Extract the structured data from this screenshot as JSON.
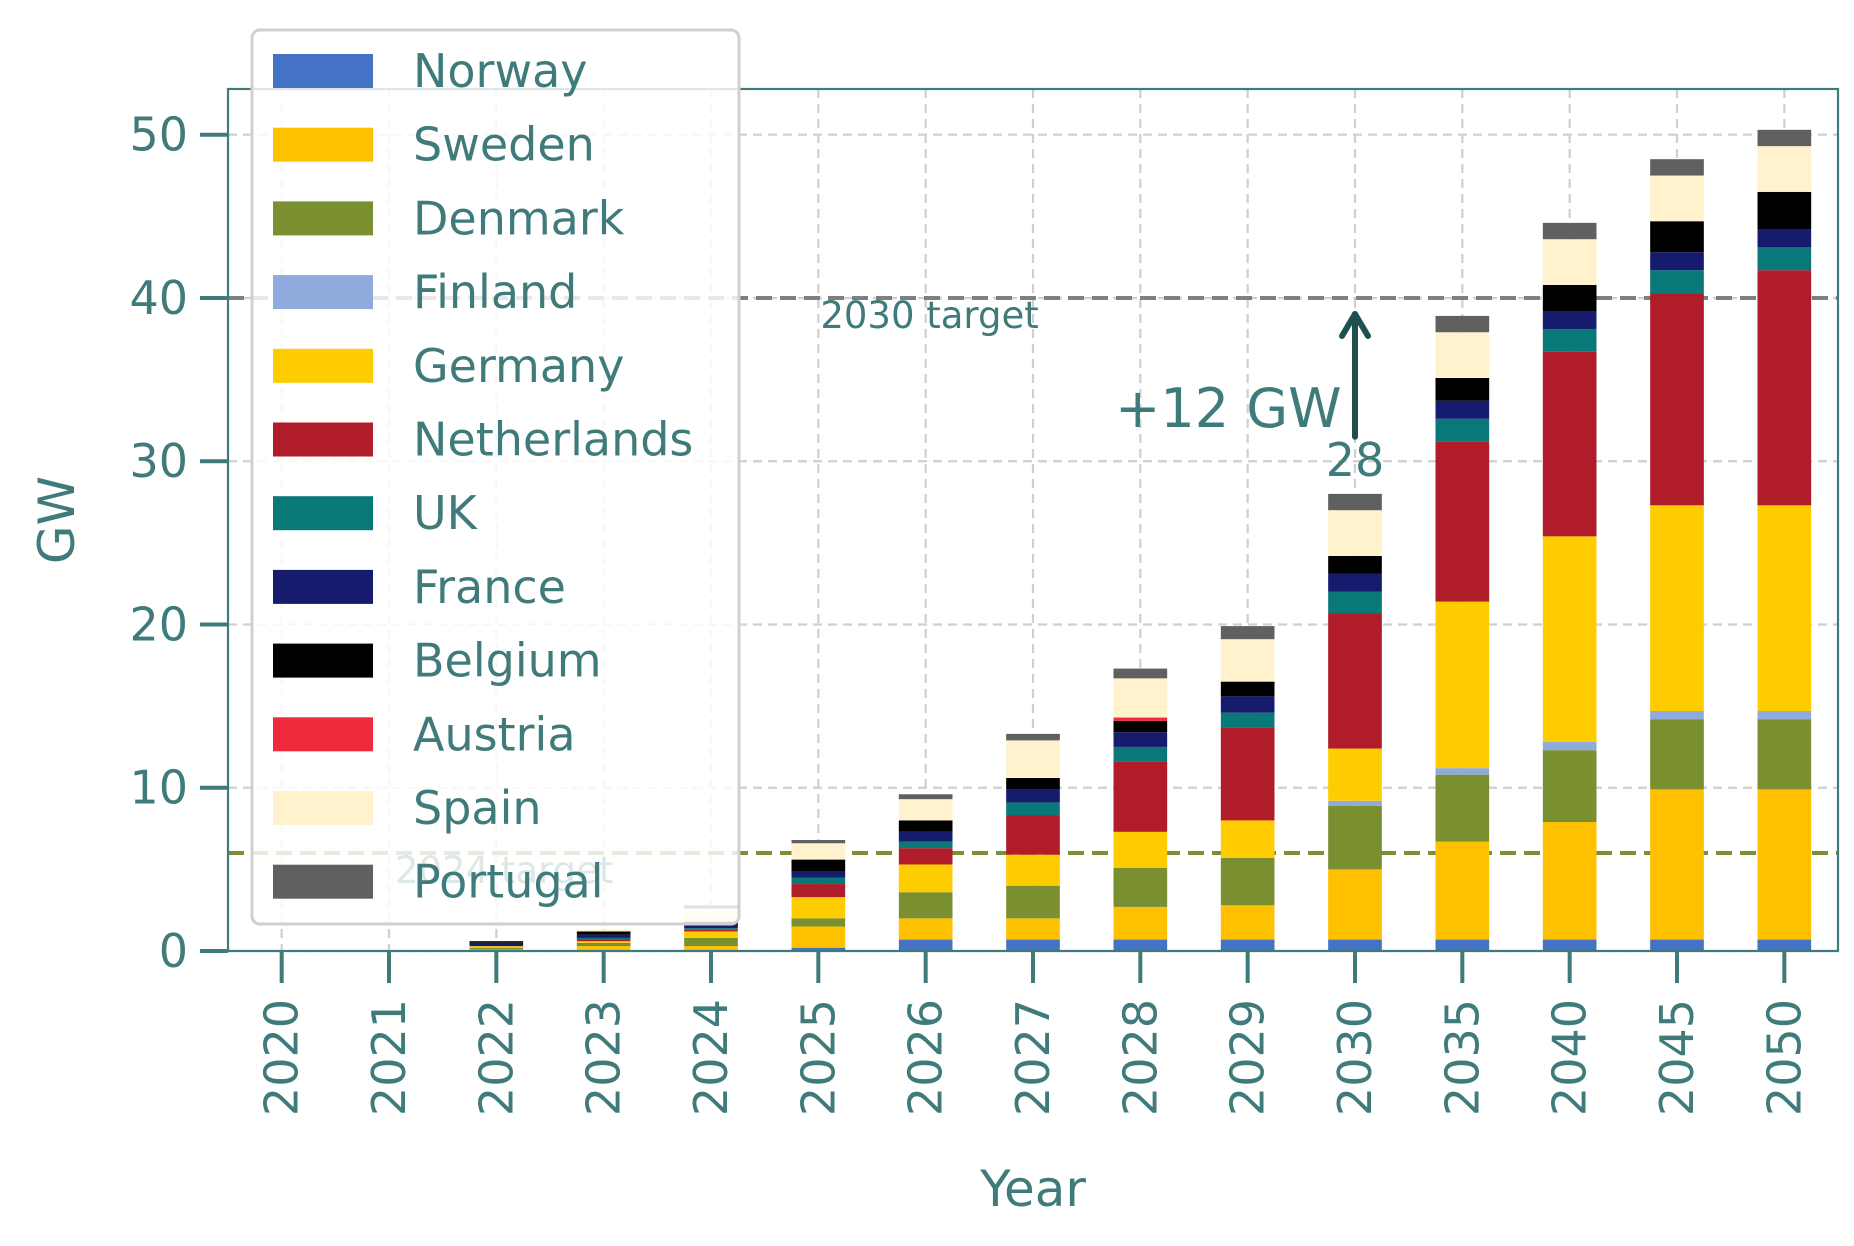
{
  "chart_data": {
    "type": "bar",
    "stacked": true,
    "xlabel": "Year",
    "ylabel": "GW",
    "ylim": [
      0,
      52.8
    ],
    "yticks": [
      0,
      10,
      20,
      30,
      40,
      50
    ],
    "grid": true,
    "legend_position": "top-left",
    "categories": [
      "2020",
      "2021",
      "2022",
      "2023",
      "2024",
      "2025",
      "2026",
      "2027",
      "2028",
      "2029",
      "2030",
      "2035",
      "2040",
      "2045",
      "2050"
    ],
    "series": [
      {
        "name": "Norway",
        "color": "#4472c4",
        "values": [
          0,
          0,
          0,
          0,
          0,
          0.2,
          0.7,
          0.7,
          0.7,
          0.7,
          0.7,
          0.7,
          0.7,
          0.7,
          0.7
        ]
      },
      {
        "name": "Sweden",
        "color": "#ffc000",
        "values": [
          0,
          0,
          0.1,
          0.3,
          0.3,
          1.3,
          1.3,
          1.3,
          2.0,
          2.1,
          4.3,
          6.0,
          7.2,
          9.2,
          9.2
        ]
      },
      {
        "name": "Denmark",
        "color": "#7a9030",
        "values": [
          0,
          0,
          0.1,
          0.2,
          0.5,
          0.5,
          1.6,
          2.0,
          2.4,
          2.9,
          3.9,
          4.1,
          4.4,
          4.3,
          4.3
        ]
      },
      {
        "name": "Finland",
        "color": "#8faadc",
        "values": [
          0,
          0,
          0,
          0,
          0,
          0,
          0,
          0,
          0,
          0,
          0.3,
          0.4,
          0.5,
          0.5,
          0.5
        ]
      },
      {
        "name": "Germany",
        "color": "#ffcc00",
        "values": [
          0,
          0,
          0.1,
          0.1,
          0.4,
          1.3,
          1.7,
          1.9,
          2.2,
          2.3,
          3.2,
          10.2,
          12.6,
          12.6,
          12.6
        ]
      },
      {
        "name": "Netherlands",
        "color": "#b01c2a",
        "values": [
          0,
          0,
          0,
          0.1,
          0.1,
          0.8,
          1.0,
          2.4,
          4.3,
          5.7,
          8.3,
          9.8,
          11.3,
          13.0,
          14.4
        ]
      },
      {
        "name": "UK",
        "color": "#087878",
        "values": [
          0,
          0,
          0,
          0.1,
          0.1,
          0.4,
          0.4,
          0.8,
          0.9,
          0.9,
          1.3,
          1.4,
          1.4,
          1.4,
          1.4
        ]
      },
      {
        "name": "France",
        "color": "#171b6e",
        "values": [
          0,
          0,
          0.2,
          0.2,
          0.2,
          0.4,
          0.6,
          0.8,
          0.9,
          1.0,
          1.1,
          1.1,
          1.1,
          1.1,
          1.1
        ]
      },
      {
        "name": "Belgium",
        "color": "#000000",
        "values": [
          0,
          0,
          0.1,
          0.2,
          0.2,
          0.7,
          0.7,
          0.7,
          0.7,
          0.9,
          1.1,
          1.4,
          1.6,
          1.9,
          2.3
        ]
      },
      {
        "name": "Austria",
        "color": "#ee2a3c",
        "values": [
          0,
          0,
          0,
          0,
          0,
          0,
          0,
          0,
          0.2,
          0,
          0,
          0,
          0,
          0,
          0
        ]
      },
      {
        "name": "Spain",
        "color": "#fff2cc",
        "values": [
          0,
          0,
          0,
          0.1,
          0.8,
          1.0,
          1.3,
          2.3,
          2.4,
          2.6,
          2.8,
          2.8,
          2.8,
          2.8,
          2.8
        ]
      },
      {
        "name": "Portugal",
        "color": "#606060",
        "values": [
          0,
          0,
          0,
          0,
          0.2,
          0.2,
          0.3,
          0.4,
          0.6,
          0.8,
          1.0,
          1.0,
          1.0,
          1.0,
          1.0
        ]
      }
    ],
    "reference_lines": [
      {
        "value": 40,
        "label": "2030 target",
        "color": "#7f7f7f"
      },
      {
        "value": 6,
        "label": "2024 target",
        "color": "#7a9030"
      }
    ],
    "annotations": {
      "arrow_label": "+12 GW",
      "total_label": "28"
    }
  }
}
